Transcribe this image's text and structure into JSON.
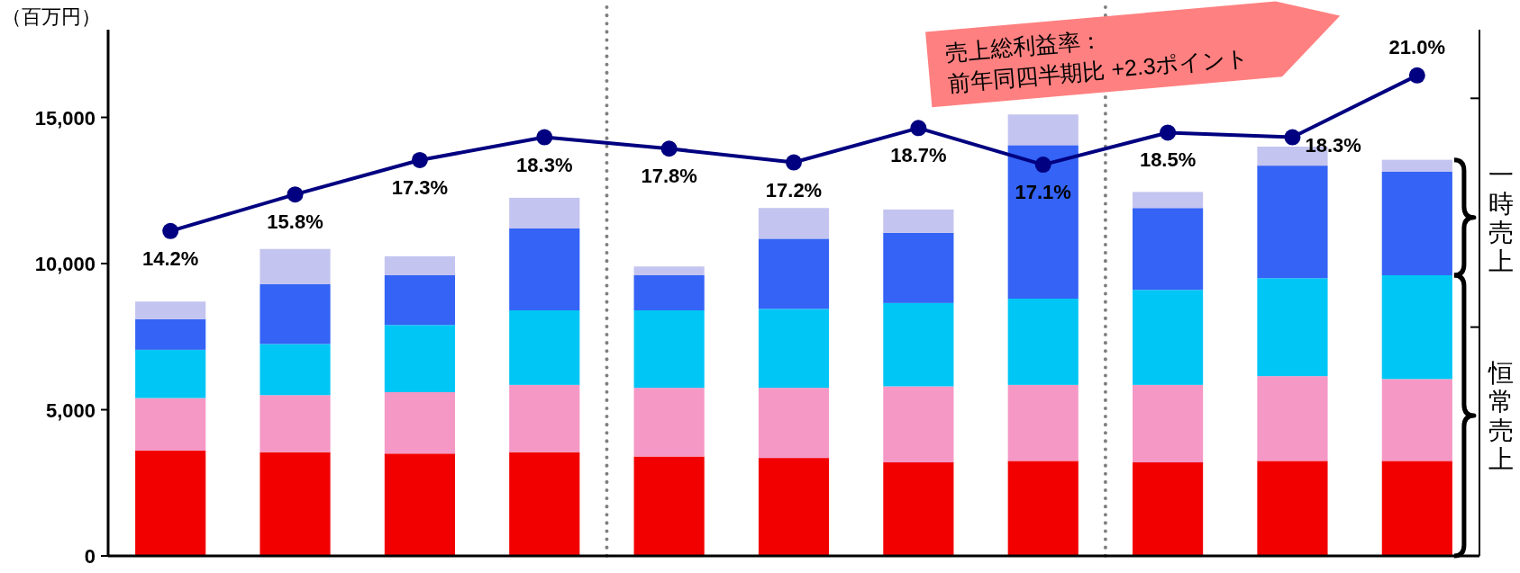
{
  "chart_data": {
    "type": "bar",
    "stacked": true,
    "ylabel": "（百万円）",
    "categories": [
      null,
      null,
      null,
      null,
      null,
      null,
      null,
      null,
      null,
      null,
      null
    ],
    "ylim": [
      0,
      18000
    ],
    "yticks": [
      0,
      {
        "value": 5000,
        "label": "5,000"
      },
      {
        "value": 10000,
        "label": "10,000"
      },
      {
        "value": 15000,
        "label": "15,000"
      }
    ],
    "y2lim": [
      0,
      23
    ],
    "y2ticks": [
      {
        "value": 10,
        "label": null
      },
      {
        "value": 20,
        "label": null
      }
    ],
    "series": [
      {
        "color": "#f20000",
        "values": [
          3600,
          3550,
          3500,
          3550,
          3400,
          3350,
          3200,
          3250,
          3200,
          3250,
          3250
        ]
      },
      {
        "color": "#f598c6",
        "values": [
          1800,
          1950,
          2100,
          2300,
          2350,
          2400,
          2600,
          2600,
          2650,
          2900,
          2800
        ]
      },
      {
        "color": "#00c6f5",
        "values": [
          1650,
          1750,
          2300,
          2550,
          2650,
          2700,
          2850,
          2950,
          3250,
          3350,
          3550
        ]
      },
      {
        "color": "#3463f5",
        "values": [
          1050,
          2050,
          1700,
          2800,
          1200,
          2400,
          2400,
          5250,
          2800,
          3850,
          3550
        ]
      },
      {
        "color": "#c4c4f0",
        "values": [
          600,
          1200,
          650,
          1050,
          300,
          1050,
          800,
          1050,
          550,
          650,
          400
        ]
      },
      {
        "type": "line",
        "axis": "y2",
        "color": "#000080",
        "marker": "circle",
        "values": [
          14.2,
          15.8,
          17.3,
          18.3,
          17.8,
          17.2,
          18.7,
          17.1,
          18.5,
          18.3,
          21.0
        ],
        "value_labels": [
          "14.2%",
          "15.8%",
          "17.3%",
          "18.3%",
          "17.8%",
          "17.2%",
          "18.7%",
          "17.1%",
          "18.5%",
          "18.3%",
          "21.0%"
        ]
      }
    ],
    "annotations": [
      "売上総利益率：\n前年同四半期比  +2.3ポイント",
      "一時売上",
      "恒常売上"
    ],
    "grid": false
  }
}
